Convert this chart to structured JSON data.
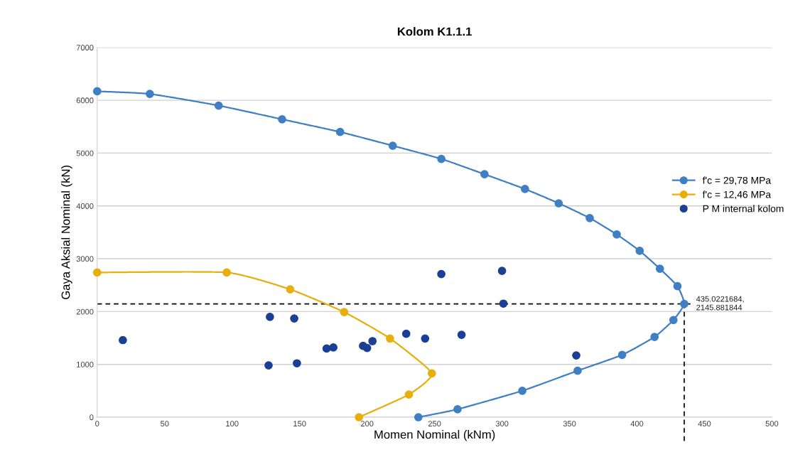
{
  "chart_data": {
    "type": "line",
    "title": "Kolom K1.1.1",
    "xlabel": "Momen Nominal (kNm)",
    "ylabel": "Gaya Aksial Nominal (kN)",
    "xlim": [
      0,
      500
    ],
    "xticks": [
      0,
      50,
      100,
      150,
      200,
      250,
      300,
      350,
      400,
      450,
      500
    ],
    "ylim": [
      0,
      7000
    ],
    "yticks": [
      0,
      1000,
      2000,
      3000,
      4000,
      5000,
      6000,
      7000
    ],
    "grid": "y",
    "legend": "right",
    "marker": "circle",
    "series": [
      {
        "name": "f'c = 29,78 MPa",
        "color": "#3f7fc4",
        "x": [
          0,
          39,
          90,
          137,
          180,
          219,
          255,
          287,
          317,
          342,
          365,
          385,
          402,
          417,
          430,
          435.0221684,
          427,
          413,
          389,
          356,
          315,
          267,
          238
        ],
        "values": [
          6170,
          6120,
          5900,
          5640,
          5400,
          5140,
          4890,
          4600,
          4320,
          4050,
          3770,
          3460,
          3150,
          2810,
          2480,
          2145.881844,
          1840,
          1520,
          1180,
          880,
          500,
          150,
          0
        ]
      },
      {
        "name": "f'c = 12,46 MPa",
        "color": "#e8ae0c",
        "x": [
          0,
          96,
          143,
          183,
          217,
          248,
          231,
          194
        ],
        "values": [
          2740,
          2740,
          2420,
          1990,
          1490,
          830,
          430,
          0
        ]
      },
      {
        "name": "P M internal kolom",
        "type": "scatter",
        "color": "#1a3f95",
        "x": [
          19,
          128,
          146,
          127,
          148,
          170,
          175,
          197,
          200,
          204,
          229,
          243,
          255,
          270,
          300,
          301,
          355
        ],
        "values": [
          1460,
          1900,
          1870,
          980,
          1020,
          1300,
          1320,
          1350,
          1310,
          1440,
          1580,
          1490,
          2710,
          1560,
          2770,
          2150,
          1170
        ]
      }
    ],
    "ref_lines": [
      {
        "axis": "y",
        "value": 2145.881844,
        "color": "#000000",
        "line_style": "dashed"
      },
      {
        "axis": "x",
        "value": 435.0221684,
        "color": "#000000",
        "line_style": "dashed"
      }
    ],
    "annotations": [
      {
        "text": "435.0221684,\n2145.881844",
        "x": 435.0221684,
        "y": 2145.881844
      }
    ]
  }
}
